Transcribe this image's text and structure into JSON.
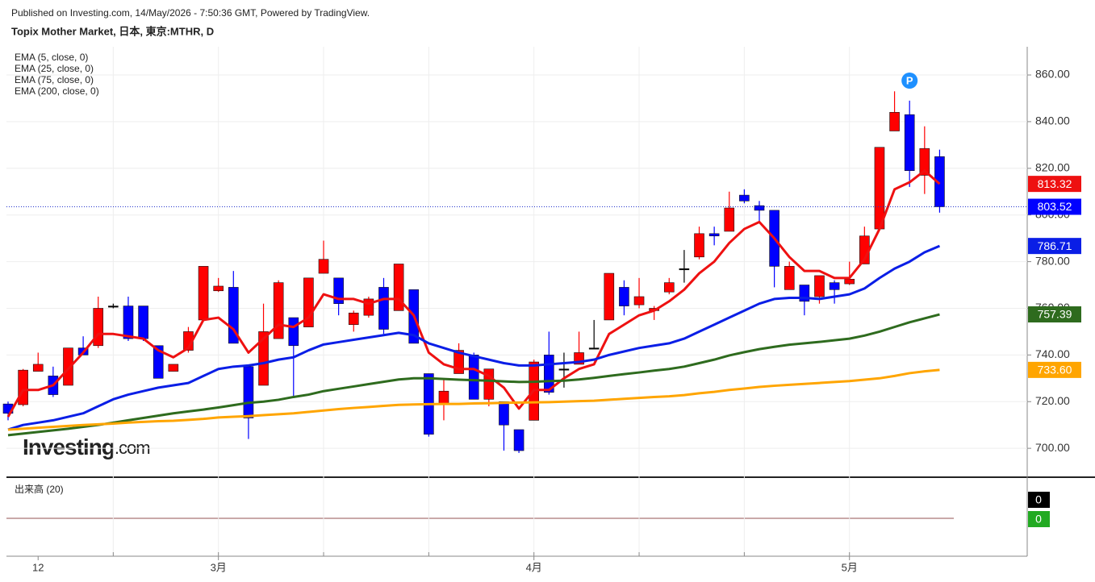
{
  "chart_data": {
    "type": "candlestick",
    "published": "Published on Investing.com, 14/May/2026 - 7:50:36 GMT, Powered by TradingView.",
    "title": "Topix Mother Market, 日本, 東京:MTHR, D",
    "watermark": [
      "Investing",
      ".com"
    ],
    "annotation": "P",
    "categories": [
      null,
      null,
      "12",
      null,
      null,
      null,
      null,
      null,
      null,
      null,
      null,
      null,
      null,
      null,
      "3月",
      null,
      null,
      null,
      null,
      null,
      null,
      null,
      null,
      null,
      null,
      null,
      null,
      null,
      null,
      null,
      null,
      null,
      null,
      null,
      null,
      "4月",
      null,
      null,
      null,
      null,
      null,
      null,
      null,
      null,
      null,
      null,
      null,
      null,
      null,
      null,
      null,
      null,
      null,
      null,
      null,
      null,
      "5月",
      null,
      null,
      null,
      null,
      null,
      null
    ],
    "open": [
      719,
      718.7,
      733,
      731,
      727,
      743,
      744,
      761,
      761,
      761,
      744,
      733,
      742,
      755,
      767.5,
      769,
      735,
      727,
      747,
      756,
      752,
      775,
      773,
      753,
      757,
      769,
      759,
      768,
      732,
      719,
      732,
      740,
      721,
      720,
      708,
      712,
      740,
      734,
      736,
      743,
      755,
      769,
      761.5,
      759,
      767,
      777,
      782,
      792,
      793,
      808.5,
      804,
      802,
      768,
      770,
      765,
      771,
      770.5,
      779,
      794,
      836,
      843,
      817,
      825
    ],
    "high": [
      720,
      734,
      741,
      735,
      743,
      748,
      765,
      762,
      765,
      761,
      744,
      736,
      752,
      778,
      773,
      776,
      735,
      762,
      772,
      756,
      773,
      789,
      773,
      759,
      765,
      773,
      779,
      768,
      732,
      730,
      745,
      741,
      734,
      720,
      708,
      738,
      750,
      741,
      750,
      755,
      775,
      772,
      773,
      761,
      773,
      785,
      795,
      795,
      810,
      811,
      806,
      802,
      780,
      770,
      774,
      772,
      780,
      795,
      829,
      853,
      849,
      838,
      828
    ],
    "low": [
      712,
      718,
      733,
      722,
      727,
      740,
      743,
      760,
      746,
      746,
      730,
      733,
      741,
      755,
      767,
      745,
      704,
      727,
      747,
      722,
      752,
      775,
      757,
      750,
      756,
      749,
      759,
      745,
      705,
      712,
      732,
      721,
      718,
      699,
      698,
      712,
      723,
      726,
      736,
      743,
      755,
      757,
      760,
      755,
      766,
      771,
      781,
      787,
      793,
      805,
      797,
      769,
      768,
      757,
      762,
      762,
      770,
      779,
      794,
      836,
      812,
      809,
      801
    ],
    "close": [
      715,
      733.5,
      736,
      723,
      743,
      740,
      760,
      761,
      747,
      747,
      730,
      736,
      750,
      778,
      769.5,
      745,
      713,
      750,
      771,
      744,
      773,
      781,
      762,
      758,
      764,
      751,
      779,
      745,
      706,
      724.5,
      742,
      721,
      734,
      710,
      699,
      737,
      724,
      734,
      741,
      743,
      775,
      761,
      765,
      760,
      771,
      777,
      792,
      791,
      803,
      806,
      802,
      778,
      778,
      763,
      774,
      768,
      772.5,
      791,
      829,
      844,
      819,
      828.5,
      803.52
    ],
    "up_color": "#ff0000",
    "down_color": "#0000ff",
    "doji_color": "#000000",
    "series": [
      {
        "name": "EMA (5, close, 0)",
        "color": "#ee1111",
        "last_label": "813.32",
        "values": [
          713.5,
          725,
          725,
          727,
          734,
          741,
          749,
          749,
          748,
          747,
          742,
          739,
          743,
          755,
          756,
          751,
          741,
          747,
          753,
          752,
          756,
          766,
          764,
          764,
          762,
          764,
          764,
          757,
          741,
          736,
          734,
          734,
          731,
          726,
          717,
          725,
          725,
          730,
          734,
          736,
          749,
          753,
          757,
          759,
          763,
          768,
          775,
          780,
          788,
          794,
          797,
          790,
          782,
          776,
          776,
          773,
          773,
          781,
          794,
          811,
          814,
          819,
          813.32
        ]
      },
      {
        "name": "EMA (25, close, 0)",
        "color": "#0a1ee6",
        "last_label": "786.71",
        "values": [
          708,
          710,
          711,
          712,
          713.5,
          715,
          718,
          721,
          723,
          724.5,
          726,
          727,
          728,
          731,
          734,
          735,
          735.5,
          736.5,
          738,
          739,
          742,
          744.5,
          745.5,
          746.5,
          747.5,
          748.5,
          749.5,
          748.5,
          745,
          743,
          741,
          739.5,
          738,
          736.5,
          735.5,
          735.5,
          736,
          736.5,
          737,
          738,
          740,
          741.5,
          743,
          744,
          745,
          747,
          750,
          753,
          756,
          759,
          762,
          764,
          764.5,
          764.5,
          764,
          765,
          766,
          768.5,
          773,
          777,
          780,
          784,
          786.71
        ]
      },
      {
        "name": "EMA (75, close, 0)",
        "color": "#2e6b1e",
        "last_label": "757.39",
        "values": [
          705.6,
          706.3,
          707,
          707.7,
          708.4,
          709.2,
          710,
          711,
          712,
          713,
          714,
          715,
          715.8,
          716.6,
          717.5,
          718.5,
          719.5,
          720,
          720.8,
          722,
          723,
          724.5,
          725.5,
          726.5,
          727.5,
          728.5,
          729.5,
          730,
          730,
          729.7,
          729.4,
          729.2,
          729,
          728.7,
          728.4,
          728.5,
          728.8,
          729,
          729.5,
          730.2,
          731,
          731.8,
          732.5,
          733.3,
          734,
          735,
          736.5,
          738,
          739.8,
          741.2,
          742.5,
          743.5,
          744.4,
          745,
          745.6,
          746.3,
          747,
          748.3,
          750,
          752,
          754,
          755.7,
          757.39
        ]
      },
      {
        "name": "EMA (200, close, 0)",
        "color": "#ffa500",
        "last_label": "733.60",
        "values": [
          708,
          708.4,
          708.8,
          709.2,
          709.6,
          710,
          710.3,
          710.6,
          711,
          711.3,
          711.6,
          711.8,
          712.2,
          712.6,
          713.2,
          713.5,
          713.8,
          714.2,
          714.6,
          715,
          715.6,
          716.2,
          716.8,
          717.3,
          717.7,
          718.2,
          718.6,
          718.8,
          718.9,
          719,
          719,
          719.2,
          719.3,
          719.5,
          719.6,
          719.7,
          719.8,
          720,
          720.2,
          720.4,
          720.8,
          721.2,
          721.6,
          722,
          722.3,
          722.8,
          723.6,
          724.2,
          725,
          725.6,
          726.3,
          726.8,
          727.2,
          727.6,
          728,
          728.4,
          728.8,
          729.4,
          730,
          731,
          732.2,
          733,
          733.6
        ]
      }
    ],
    "ylim": [
      688.3,
      872.1
    ],
    "yticks": [
      {
        "value": 700,
        "label": "700.00"
      },
      {
        "value": 720,
        "label": "720.00"
      },
      {
        "value": 740,
        "label": "740.00"
      },
      {
        "value": 760,
        "label": "760.00"
      },
      {
        "value": 780,
        "label": "780.00"
      },
      {
        "value": 800,
        "label": "800.00"
      },
      {
        "value": 820,
        "label": "820.00"
      },
      {
        "value": 840,
        "label": "840.00"
      },
      {
        "value": 860,
        "label": "860.00"
      }
    ],
    "grid": true,
    "volume": {
      "name": "出来高 (20)",
      "values": [
        0,
        0
      ]
    }
  }
}
